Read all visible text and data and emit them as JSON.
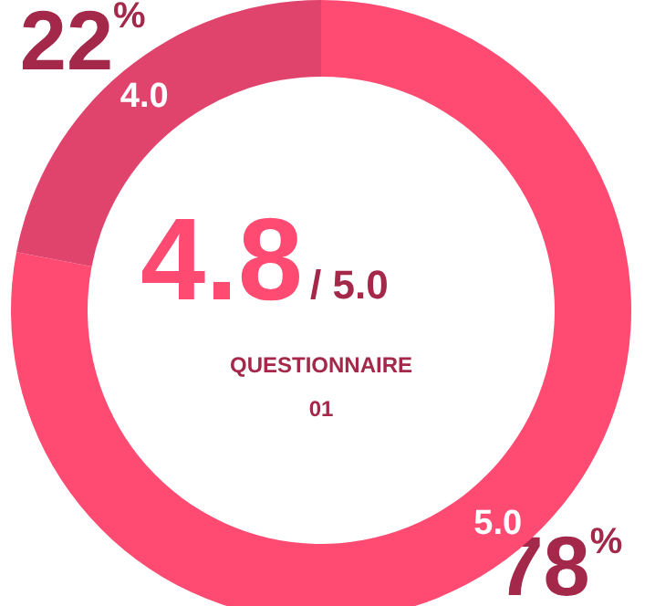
{
  "chart_data": {
    "type": "donut",
    "categories": [
      "5.0",
      "4.0"
    ],
    "values": [
      78,
      22
    ],
    "colors": [
      "#ff4a72",
      "#e0446c"
    ],
    "value_labels": [
      "78%",
      "22%"
    ],
    "annotations": [
      "4.8",
      "/ 5.0",
      "QUESTIONNAIRE",
      "01"
    ],
    "legend": false
  }
}
